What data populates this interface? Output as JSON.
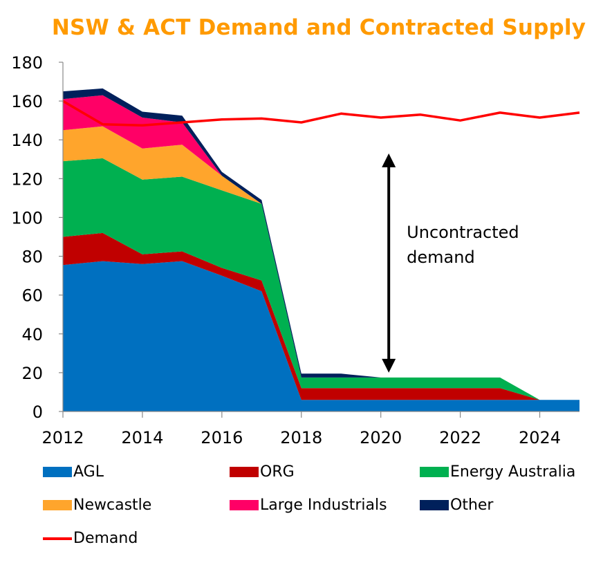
{
  "chart_data": {
    "type": "area",
    "stacked": true,
    "title": "NSW & ACT Demand and Contracted Supply",
    "xlabel": "",
    "ylabel": "",
    "x": [
      2012,
      2013,
      2014,
      2015,
      2016,
      2017,
      2018,
      2019,
      2020,
      2021,
      2022,
      2023,
      2024,
      2025
    ],
    "xlim": [
      2012,
      2025
    ],
    "ylim": [
      0,
      180
    ],
    "yticks": [
      0,
      20,
      40,
      60,
      80,
      100,
      120,
      140,
      160,
      180
    ],
    "xticks": [
      2012,
      2014,
      2016,
      2018,
      2020,
      2022,
      2024
    ],
    "grid": false,
    "series": [
      {
        "name": "AGL",
        "color": "#0070c0",
        "values": [
          75.5,
          77.5,
          76,
          77.5,
          70,
          62,
          6,
          6,
          6,
          6,
          6,
          6,
          6,
          6
        ]
      },
      {
        "name": "ORG",
        "color": "#c00000",
        "values": [
          14.5,
          14.5,
          5,
          5,
          4,
          5.5,
          6,
          6,
          6,
          6,
          6,
          6,
          0,
          0
        ]
      },
      {
        "name": "Energy Australia",
        "color": "#00b050",
        "values": [
          39,
          38.5,
          38.5,
          38.5,
          40,
          39.5,
          5.5,
          5.5,
          5.5,
          5.5,
          5.5,
          5.5,
          0,
          0
        ]
      },
      {
        "name": "Newcastle",
        "color": "#ffa52c",
        "values": [
          16,
          16.5,
          16,
          16.5,
          7.5,
          0,
          0,
          0,
          0,
          0,
          0,
          0,
          0,
          0
        ]
      },
      {
        "name": "Large Industrials",
        "color": "#ff0066",
        "values": [
          16,
          16,
          16,
          11.5,
          0,
          0,
          0,
          0,
          0,
          0,
          0,
          0,
          0,
          0
        ]
      },
      {
        "name": "Other",
        "color": "#00205b",
        "values": [
          4,
          3.5,
          3,
          3.5,
          2,
          2,
          2,
          2,
          0,
          0,
          0,
          0,
          0,
          0
        ]
      }
    ],
    "line_series": [
      {
        "name": "Demand",
        "color": "#ff0000",
        "values": [
          160,
          148,
          147.5,
          149,
          150.5,
          151,
          149,
          153.5,
          151.5,
          153,
          150,
          154,
          151.5,
          154
        ]
      }
    ],
    "annotations": [
      {
        "text_lines": [
          "Uncontracted",
          "demand"
        ],
        "type": "double-arrow",
        "x": 2020.2,
        "y_from": 20,
        "y_to": 133
      }
    ],
    "legend": {
      "position": "bottom",
      "columns": 3
    }
  }
}
